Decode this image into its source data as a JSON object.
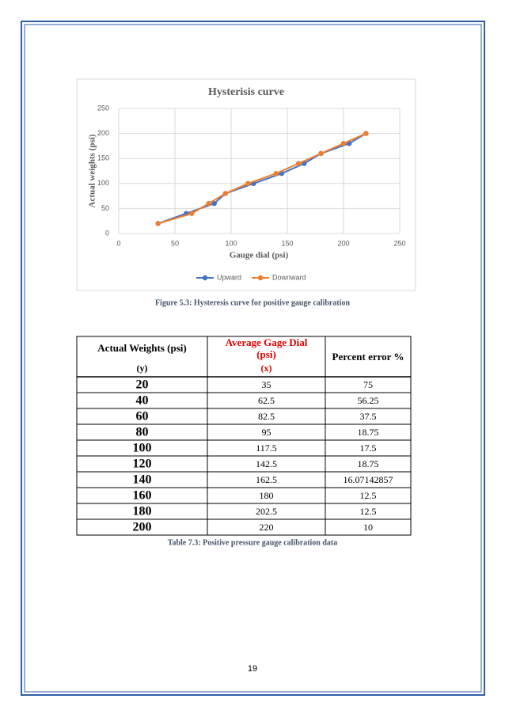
{
  "chart_data": {
    "type": "line",
    "title": "Hysterisis curve",
    "x_label": "Gauge dial (psi)",
    "y_label": "Actual weights (psi)",
    "series": [
      {
        "name": "Upward",
        "color": "#4472c4",
        "x": [
          35,
          60,
          85,
          95,
          120,
          145,
          165,
          180,
          205,
          220
        ],
        "values": [
          20,
          40,
          60,
          80,
          100,
          120,
          140,
          160,
          180,
          200
        ]
      },
      {
        "name": "Downward",
        "color": "#ed7d31",
        "x": [
          35,
          65,
          80,
          95,
          115,
          140,
          160,
          180,
          200,
          220
        ],
        "values": [
          20,
          40,
          60,
          80,
          100,
          120,
          140,
          160,
          180,
          200
        ]
      }
    ],
    "xlim": [
      0,
      250
    ],
    "xticks": [
      0,
      50,
      100,
      150,
      200,
      250
    ],
    "ylim": [
      0,
      250
    ],
    "yticks": [
      0,
      50,
      100,
      150,
      200,
      250
    ],
    "grid": true,
    "legend": "bottom"
  },
  "figure_caption": "Figure 5.3: Hysteresis curve for positive gauge calibration",
  "table": {
    "header": [
      {
        "lines": [
          "Actual Weights (psi)"
        ],
        "symbol": "(y)"
      },
      {
        "lines": [
          "Average Gage Dial",
          "(psi)"
        ],
        "symbol": "(x)"
      },
      {
        "lines": [
          "Percent error %"
        ]
      }
    ],
    "rows": [
      [
        20,
        35,
        75
      ],
      [
        40,
        62.5,
        56.25
      ],
      [
        60,
        82.5,
        37.5
      ],
      [
        80,
        95,
        18.75
      ],
      [
        100,
        117.5,
        17.5
      ],
      [
        120,
        142.5,
        18.75
      ],
      [
        140,
        162.5,
        16.07142857
      ],
      [
        160,
        180,
        12.5
      ],
      [
        180,
        202.5,
        12.5
      ],
      [
        200,
        220,
        10
      ]
    ]
  },
  "table_caption": "Table 7.3: Positive pressure gauge calibration data",
  "page_number": "19"
}
